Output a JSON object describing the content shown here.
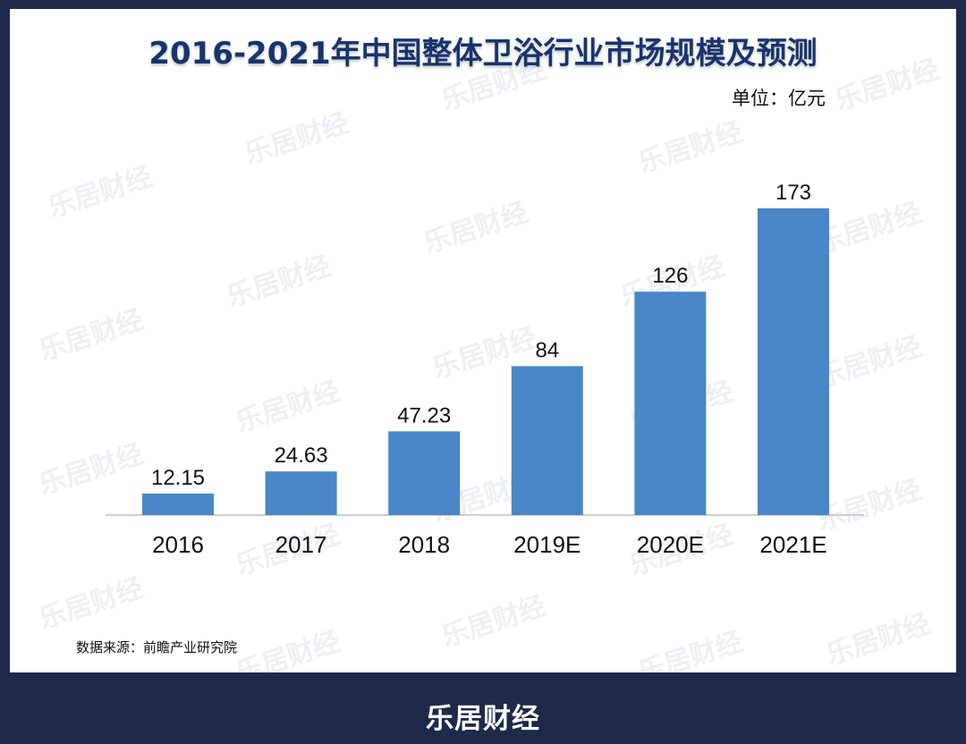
{
  "chart_data": {
    "type": "bar",
    "title": "2016-2021年中国整体卫浴行业市场规模及预测",
    "unit_label": "单位：亿元",
    "categories": [
      "2016",
      "2017",
      "2018",
      "2019E",
      "2020E",
      "2021E"
    ],
    "values": [
      12.15,
      24.63,
      47.23,
      84,
      126,
      173
    ],
    "value_labels": [
      "12.15",
      "24.63",
      "47.23",
      "84",
      "126",
      "173"
    ],
    "ylim": [
      0,
      173
    ],
    "bar_color": "#4a86c8",
    "grid": false,
    "legend": "none"
  },
  "source": "数据来源：前瞻产业研究院",
  "watermark_text": "乐居财经",
  "brand": "乐居财经"
}
